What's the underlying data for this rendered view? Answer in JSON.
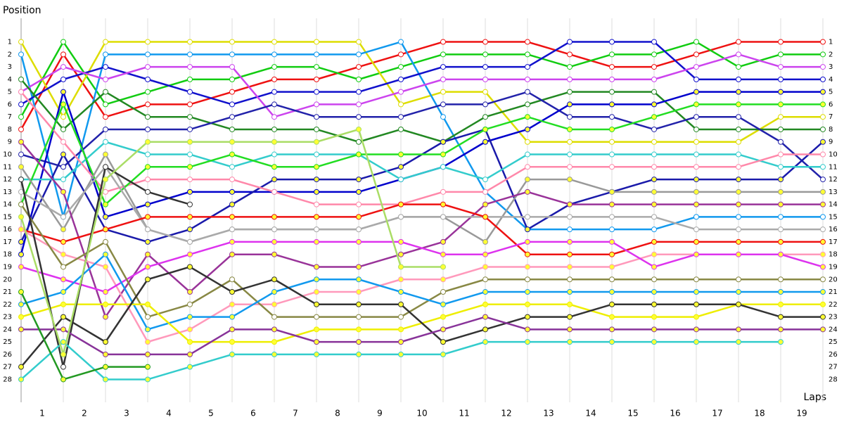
{
  "chart_data": {
    "type": "line",
    "y_label": "Position",
    "x_label": "Laps",
    "x": [
      0,
      1,
      2,
      3,
      4,
      5,
      6,
      7,
      8,
      9,
      10,
      11,
      12,
      13,
      14,
      15,
      16,
      17,
      18,
      19
    ],
    "xlim": [
      0,
      19
    ],
    "xticks": [
      {
        "value": 0.5,
        "label": "1"
      },
      {
        "value": 1.5,
        "label": "2"
      },
      {
        "value": 2.5,
        "label": "3"
      },
      {
        "value": 3.5,
        "label": "4"
      },
      {
        "value": 4.5,
        "label": "5"
      },
      {
        "value": 5.5,
        "label": "6"
      },
      {
        "value": 6.5,
        "label": "7"
      },
      {
        "value": 7.5,
        "label": "8"
      },
      {
        "value": 8.5,
        "label": "9"
      },
      {
        "value": 9.5,
        "label": "10"
      },
      {
        "value": 10.5,
        "label": "11"
      },
      {
        "value": 11.5,
        "label": "12"
      },
      {
        "value": 12.5,
        "label": "13"
      },
      {
        "value": 13.5,
        "label": "14"
      },
      {
        "value": 14.5,
        "label": "15"
      },
      {
        "value": 15.5,
        "label": "16"
      },
      {
        "value": 16.5,
        "label": "17"
      },
      {
        "value": 17.5,
        "label": "18"
      },
      {
        "value": 18.5,
        "label": "19"
      }
    ],
    "ylim": [
      -1,
      30
    ],
    "y_inverted": true,
    "yticks": [
      1,
      2,
      3,
      4,
      5,
      6,
      7,
      8,
      9,
      10,
      11,
      12,
      13,
      14,
      15,
      16,
      17,
      18,
      19,
      20,
      21,
      22,
      23,
      24,
      25,
      26,
      27,
      28
    ],
    "series": [
      {
        "color": "#ee1111",
        "marker_color": "#ffffff",
        "values": [
          8,
          2,
          7,
          6,
          6,
          5,
          4,
          4,
          3,
          2,
          1,
          1,
          1,
          2,
          3,
          3,
          2,
          1,
          1,
          1
        ]
      },
      {
        "color": "#11cc11",
        "marker_color": "#ffffff",
        "values": [
          7,
          1,
          6,
          5,
          4,
          4,
          3,
          3,
          4,
          3,
          2,
          2,
          2,
          3,
          2,
          2,
          1,
          3,
          2,
          2
        ]
      },
      {
        "color": "#dddd00",
        "marker_color": "#ffffff",
        "values": [
          1,
          7,
          1,
          1,
          1,
          1,
          1,
          1,
          1,
          6,
          5,
          5,
          9,
          9,
          9,
          9,
          9,
          9,
          7,
          7
        ]
      },
      {
        "color": "#1199ee",
        "marker_color": "#ffffff",
        "values": [
          2,
          15,
          2,
          2,
          2,
          2,
          2,
          2,
          2,
          1,
          7,
          13,
          16,
          16,
          16,
          16,
          15,
          15,
          15,
          15
        ]
      },
      {
        "color": "#1111cc",
        "marker_color": "#ffffff",
        "values": [
          6,
          4,
          3,
          4,
          5,
          6,
          5,
          5,
          5,
          4,
          3,
          3,
          3,
          1,
          1,
          1,
          4,
          4,
          4,
          4
        ]
      },
      {
        "color": "#cc44ee",
        "marker_color": "#ffffff",
        "values": [
          5,
          3,
          4,
          3,
          3,
          3,
          7,
          6,
          6,
          5,
          4,
          4,
          4,
          4,
          4,
          4,
          3,
          2,
          3,
          3
        ]
      },
      {
        "color": "#228822",
        "marker_color": "#ffffff",
        "values": [
          4,
          8,
          5,
          7,
          7,
          8,
          8,
          8,
          9,
          8,
          9,
          7,
          6,
          5,
          5,
          5,
          8,
          8,
          8,
          8
        ]
      },
      {
        "color": "#2222aa",
        "marker_color": "#ffffff",
        "values": [
          10,
          11,
          8,
          8,
          8,
          7,
          6,
          7,
          7,
          7,
          6,
          6,
          5,
          7,
          7,
          8,
          7,
          7,
          9,
          12
        ]
      },
      {
        "color": "#0000cc",
        "marker_color": "#ffff33",
        "values": [
          18,
          5,
          15,
          14,
          13,
          13,
          13,
          13,
          13,
          12,
          11,
          9,
          8,
          6,
          6,
          6,
          5,
          5,
          5,
          5
        ]
      },
      {
        "color": "#1a1aaa",
        "marker_color": "#ffff33",
        "values": [
          17,
          10,
          16,
          17,
          16,
          14,
          12,
          12,
          12,
          11,
          9,
          8,
          16,
          14,
          13,
          12,
          12,
          12,
          12,
          9
        ]
      },
      {
        "color": "#33cccc",
        "marker_color": "#ffffff",
        "values": [
          12,
          12,
          9,
          10,
          10,
          11,
          10,
          10,
          10,
          12,
          11,
          12,
          10,
          10,
          10,
          10,
          10,
          10,
          11,
          11
        ]
      },
      {
        "color": "#ff88aa",
        "marker_color": "#ffffff",
        "values": [
          5,
          9,
          13,
          12,
          12,
          12,
          13,
          14,
          14,
          14,
          13,
          13,
          11,
          11,
          11,
          11,
          11,
          11,
          10,
          10
        ]
      },
      {
        "color": "#22dd22",
        "marker_color": "#ffff33",
        "values": [
          14,
          6,
          14,
          11,
          11,
          10,
          11,
          11,
          10,
          10,
          10,
          8,
          7,
          8,
          8,
          7,
          6,
          6,
          6,
          6
        ]
      },
      {
        "color": "#999999",
        "marker_color": "#ffff33",
        "values": [
          11,
          16,
          10,
          16,
          17,
          16,
          16,
          16,
          16,
          15,
          15,
          17,
          12,
          12,
          13,
          13,
          13,
          13,
          13,
          13
        ]
      },
      {
        "color": "#993399",
        "marker_color": "#ffff33",
        "values": [
          9,
          13,
          23,
          18,
          21,
          18,
          18,
          19,
          19,
          18,
          17,
          14,
          13,
          14,
          14,
          14,
          14,
          14,
          14,
          14
        ]
      },
      {
        "color": "#aaaaaa",
        "marker_color": "#ffffff",
        "values": [
          13,
          15,
          11,
          16,
          17,
          16,
          16,
          16,
          16,
          15,
          15,
          15,
          15,
          15,
          15,
          15,
          16,
          16,
          16,
          16
        ]
      },
      {
        "color": "#ee1111",
        "marker_color": "#ffff33",
        "values": [
          16,
          17,
          16,
          15,
          15,
          15,
          15,
          15,
          15,
          14,
          14,
          15,
          18,
          18,
          18,
          17,
          17,
          17,
          17,
          17
        ]
      },
      {
        "color": "#ff99bb",
        "marker_color": "#ffff33",
        "values": [
          16,
          18,
          19,
          25,
          24,
          22,
          22,
          21,
          21,
          20,
          20,
          19,
          19,
          19,
          19,
          18,
          18,
          18,
          18,
          18
        ]
      },
      {
        "color": "#dd33ee",
        "marker_color": "#ffff33",
        "values": [
          19,
          20,
          21,
          19,
          18,
          17,
          17,
          17,
          17,
          17,
          18,
          18,
          17,
          17,
          17,
          19,
          18,
          18,
          18,
          19
        ]
      },
      {
        "color": "#888844",
        "marker_color": "#ffffff",
        "values": [
          14,
          19,
          17,
          23,
          22,
          20,
          23,
          23,
          23,
          23,
          21,
          20,
          20,
          20,
          20,
          20,
          20,
          20,
          20,
          20
        ]
      },
      {
        "color": "#1199ee",
        "marker_color": "#ffff33",
        "values": [
          22,
          21,
          18,
          24,
          23,
          23,
          21,
          20,
          20,
          21,
          22,
          21,
          21,
          21,
          21,
          21,
          21,
          21,
          21,
          21
        ]
      },
      {
        "color": "#eeee00",
        "marker_color": "#ffff33",
        "values": [
          23,
          22,
          22,
          22,
          25,
          25,
          25,
          24,
          24,
          24,
          23,
          22,
          22,
          22,
          23,
          23,
          23,
          22,
          22,
          22
        ]
      },
      {
        "color": "#333333",
        "marker_color": "#ffffff",
        "values": [
          12,
          27,
          11,
          13,
          14,
          null,
          null,
          null,
          null,
          null,
          null,
          null,
          null,
          null,
          null,
          null,
          null,
          null,
          null,
          null
        ]
      },
      {
        "color": "#333333",
        "marker_color": "#ffff33",
        "values": [
          27,
          23,
          25,
          20,
          19,
          21,
          20,
          22,
          22,
          22,
          25,
          24,
          23,
          23,
          22,
          22,
          22,
          22,
          23,
          23
        ]
      },
      {
        "color": "#883399",
        "marker_color": "#ffff33",
        "values": [
          24,
          24,
          26,
          26,
          26,
          24,
          24,
          25,
          25,
          25,
          24,
          23,
          24,
          24,
          24,
          24,
          24,
          24,
          24,
          24
        ]
      },
      {
        "color": "#33cccc",
        "marker_color": "#ffff33",
        "values": [
          28,
          25,
          28,
          28,
          27,
          26,
          26,
          26,
          26,
          26,
          26,
          25,
          25,
          25,
          25,
          25,
          25,
          25,
          25,
          null
        ]
      },
      {
        "color": "#229922",
        "marker_color": "#ffff33",
        "values": [
          21,
          28,
          27,
          27,
          null,
          null,
          null,
          null,
          null,
          null,
          null,
          null,
          null,
          null,
          null,
          null,
          null,
          null,
          null,
          null
        ]
      },
      {
        "color": "#aadd66",
        "marker_color": "#ffff33",
        "values": [
          15,
          26,
          12,
          9,
          9,
          9,
          9,
          9,
          8,
          19,
          19,
          null,
          null,
          null,
          null,
          null,
          null,
          null,
          null,
          null
        ]
      }
    ]
  }
}
